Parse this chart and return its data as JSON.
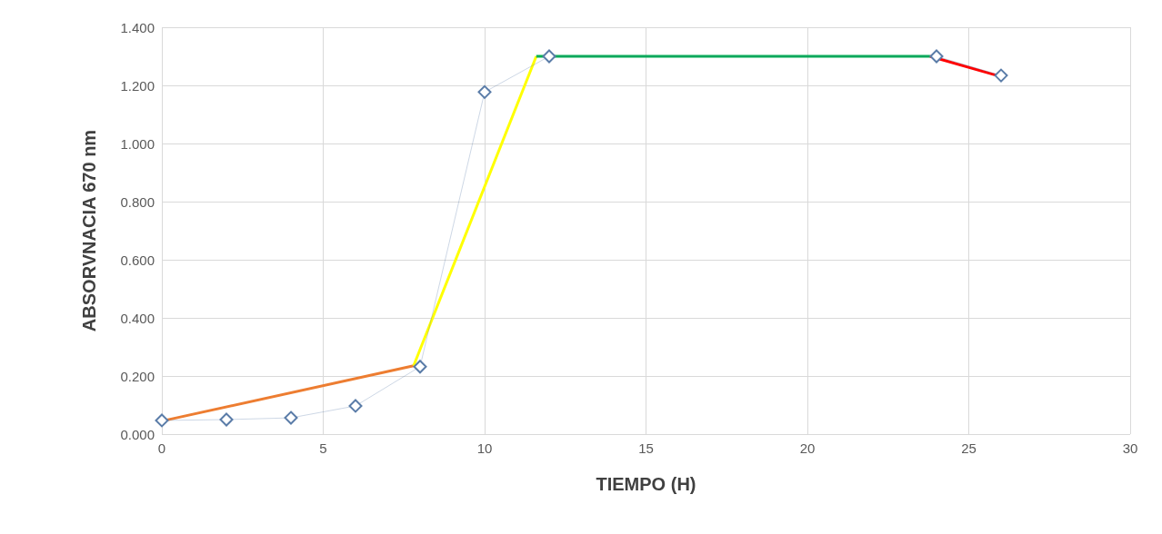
{
  "chart_data": {
    "type": "line",
    "xlabel": "TIEMPO (H)",
    "ylabel": "ABSORVNACIA 670 nm",
    "xlim": [
      0,
      30
    ],
    "xticks": [
      0,
      5,
      10,
      15,
      20,
      25,
      30
    ],
    "ylim": [
      0,
      1.4
    ],
    "yticks": [
      {
        "value": 0,
        "label": "0.000"
      },
      {
        "value": 0.2,
        "label": "0.200"
      },
      {
        "value": 0.4,
        "label": "0.400"
      },
      {
        "value": 0.6,
        "label": "0.600"
      },
      {
        "value": 0.8,
        "label": "0.800"
      },
      {
        "value": 1,
        "label": "1.000"
      },
      {
        "value": 1.2,
        "label": "1.200"
      },
      {
        "value": 1.4,
        "label": "1.400"
      }
    ],
    "grid": true,
    "marker": "diamond",
    "series": [
      {
        "color": "#5a7ca8",
        "x": [
          0,
          2,
          4,
          6,
          8,
          10,
          12,
          24,
          26
        ],
        "values": [
          0.047,
          0.05,
          0.056,
          0.097,
          0.232,
          1.177,
          1.3,
          1.3,
          1.234
        ]
      },
      {
        "color": "#ed7d31",
        "marker": "none",
        "x": [
          0,
          7.8
        ],
        "values": [
          0.045,
          0.235
        ]
      },
      {
        "color": "#ffff00",
        "marker": "none",
        "x": [
          7.8,
          11.6
        ],
        "values": [
          0.235,
          1.3
        ]
      },
      {
        "color": "#00b050",
        "marker": "none",
        "x": [
          11.6,
          23.8
        ],
        "values": [
          1.3,
          1.3
        ]
      },
      {
        "color": "#ff0000",
        "marker": "none",
        "x": [
          23.8,
          26
        ],
        "values": [
          1.3,
          1.23
        ]
      }
    ]
  }
}
